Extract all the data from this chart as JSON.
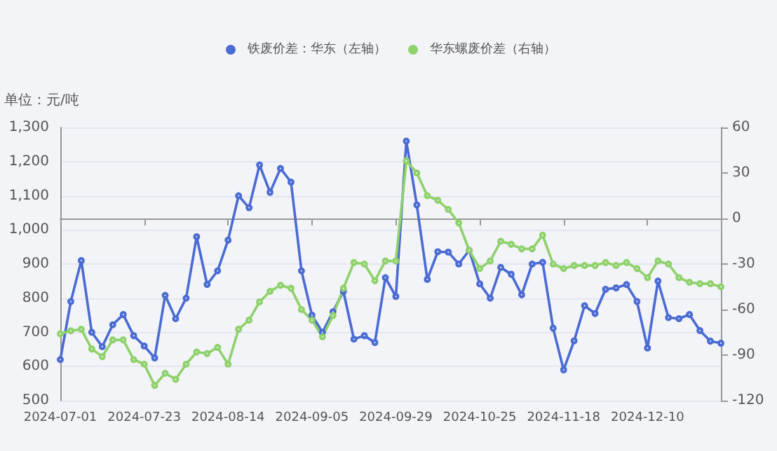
{
  "chart_data": {
    "type": "line",
    "ylabel": "单位：元/吨",
    "categories": [
      "2024-07-01",
      null,
      null,
      null,
      null,
      null,
      null,
      null,
      "2024-07-23",
      null,
      null,
      null,
      null,
      null,
      null,
      null,
      "2024-08-14",
      null,
      null,
      null,
      null,
      null,
      null,
      null,
      "2024-09-05",
      null,
      null,
      null,
      null,
      null,
      null,
      null,
      "2024-09-29",
      null,
      null,
      null,
      null,
      null,
      null,
      null,
      "2024-10-25",
      null,
      null,
      null,
      null,
      null,
      null,
      null,
      "2024-11-18",
      null,
      null,
      null,
      null,
      null,
      null,
      null,
      "2024-12-10",
      null,
      null,
      null,
      null,
      null,
      null,
      null
    ],
    "series": [
      {
        "name": "铁废价差：华东（左轴）",
        "color": "#4a6bd3",
        "values": [
          620,
          790,
          910,
          700,
          658,
          722,
          752,
          690,
          660,
          625,
          808,
          740,
          800,
          980,
          840,
          880,
          970,
          1100,
          1065,
          1190,
          1110,
          1180,
          1140,
          880,
          750,
          700,
          760,
          820,
          680,
          690,
          670,
          860,
          805,
          1260,
          1073,
          855,
          936,
          935,
          900,
          940,
          842,
          800,
          890,
          870,
          810,
          900,
          905,
          712,
          590,
          675,
          778,
          755,
          826,
          830,
          840,
          790,
          654,
          850,
          743,
          740,
          752,
          705,
          674,
          668
        ]
      },
      {
        "name": "华东螺废价差（右轴）",
        "color": "#8fd16c",
        "axis": "y2",
        "values": [
          -76,
          -74,
          -73,
          -86,
          -91,
          -80,
          -80,
          -93,
          -96,
          -110,
          -102,
          -106,
          -96,
          -88,
          -89,
          -85,
          -96,
          -73,
          -67,
          -55,
          -48,
          -44,
          -46,
          -60,
          -67,
          -78,
          -64,
          -46,
          -29,
          -30,
          -41,
          -28,
          -28,
          38,
          30,
          15,
          12,
          6,
          -3,
          -21,
          -33,
          -28,
          -15,
          -17,
          -20,
          -20,
          -11,
          -30,
          -33,
          -31,
          -31,
          -31,
          -29,
          -31,
          -29,
          -33,
          -39,
          -28,
          -30,
          -39,
          -42,
          -43,
          -43,
          -45
        ]
      }
    ],
    "ylim": [
      500,
      1300
    ],
    "yticks": [
      500,
      600,
      700,
      800,
      900,
      {
        "value": 1000,
        "label": "1,000"
      },
      {
        "value": 1100,
        "label": "1,100"
      },
      {
        "value": 1200,
        "label": "1,200"
      },
      {
        "value": 1300,
        "label": "1,300"
      }
    ],
    "y2lim": [
      -120,
      60
    ],
    "y2ticks": [
      -120,
      -90,
      -60,
      -30,
      0,
      30,
      60
    ],
    "grid": "y",
    "legend": "top",
    "marker": "circle",
    "line_style": "solid"
  }
}
